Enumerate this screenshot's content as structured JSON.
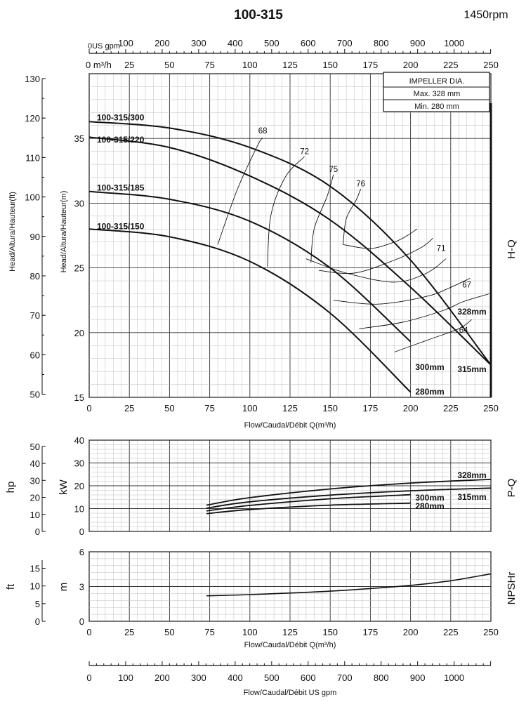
{
  "header": {
    "model": "100-315",
    "speed": "1450rpm"
  },
  "impeller_box": {
    "title": "IMPELLER DIA.",
    "max": "Max.  328  mm",
    "min": "Min.   280  mm"
  },
  "chart_data": [
    {
      "id": "hq",
      "type": "line",
      "side_label": "H-Q",
      "xlabel": "Flow/Caudal/Débit Q(m³/h)",
      "ylabel_m": "Head/Altura/Hauteur(m)",
      "ylabel_ft": "Head/Altura/Hauteur(ft)",
      "xlim": [
        0,
        250
      ],
      "ylim": [
        15,
        40
      ],
      "x_ticks": [
        0,
        25,
        50,
        75,
        100,
        125,
        150,
        175,
        200,
        225,
        250
      ],
      "y_ticks": [
        15,
        20,
        25,
        30,
        35
      ],
      "ft_ticks": [
        50,
        60,
        70,
        80,
        90,
        100,
        110,
        120,
        130
      ],
      "top_m3h_label": "0 m³/h",
      "top_m3h_ticks": [
        25,
        50,
        75,
        100,
        125,
        150,
        175,
        200,
        225,
        250
      ],
      "top_usgpm_label": "0US gpm",
      "top_usgpm_ticks": [
        100,
        200,
        300,
        400,
        500,
        600,
        700,
        800,
        900,
        1000
      ],
      "series": [
        {
          "name": "328mm",
          "x": [
            0,
            50,
            100,
            150,
            200,
            250
          ],
          "y": [
            36.3,
            35.8,
            34.3,
            31.3,
            25.6,
            17.5
          ]
        },
        {
          "name": "315mm",
          "x": [
            0,
            50,
            100,
            150,
            200,
            250
          ],
          "y": [
            35.1,
            34.3,
            32.1,
            28.7,
            23.5,
            17.5
          ]
        },
        {
          "name": "300mm",
          "x": [
            0,
            50,
            100,
            150,
            200
          ],
          "y": [
            30.9,
            30.3,
            28.6,
            25.0,
            19.3
          ]
        },
        {
          "name": "280mm",
          "x": [
            0,
            50,
            100,
            150,
            200
          ],
          "y": [
            28.0,
            27.4,
            25.5,
            21.5,
            15.4
          ]
        }
      ],
      "curve_labels": [
        "100-315/300",
        "100-315/220",
        "100-315/185",
        "100-315/150"
      ],
      "efficiency_labels": [
        {
          "text": "68",
          "x": 108,
          "y": 35.4
        },
        {
          "text": "72",
          "x": 134,
          "y": 33.8
        },
        {
          "text": "75",
          "x": 152,
          "y": 32.4
        },
        {
          "text": "76",
          "x": 169,
          "y": 31.3
        },
        {
          "text": "71",
          "x": 219,
          "y": 26.3
        },
        {
          "text": "67",
          "x": 235,
          "y": 23.5
        },
        {
          "text": "64",
          "x": 233,
          "y": 20.0
        }
      ],
      "efficiency_lines": [
        {
          "x": [
            80,
            92,
            105,
            108
          ],
          "y": [
            26.8,
            31.0,
            34.5,
            35.0
          ]
        },
        {
          "x": [
            111,
            113,
            122,
            134
          ],
          "y": [
            25.1,
            29.0,
            32.0,
            33.6
          ]
        },
        {
          "x": [
            138,
            140,
            148,
            152
          ],
          "y": [
            25.4,
            28.0,
            30.5,
            32.2
          ]
        },
        {
          "x": [
            158,
            160,
            166,
            169
          ],
          "y": [
            26.8,
            28.8,
            30.2,
            31.1
          ]
        },
        {
          "x": [
            158,
            175,
            190,
            198,
            204
          ],
          "y": [
            26.8,
            26.5,
            27.0,
            27.5,
            28.0
          ]
        },
        {
          "x": [
            143,
            165,
            190,
            207,
            214
          ],
          "y": [
            24.8,
            24.6,
            25.6,
            26.6,
            27.3
          ]
        },
        {
          "x": [
            135,
            160,
            190,
            210,
            222
          ],
          "y": [
            25.7,
            24.6,
            23.9,
            24.6,
            25.7
          ]
        },
        {
          "x": [
            152,
            180,
            210,
            225,
            237
          ],
          "y": [
            22.5,
            22.2,
            22.8,
            23.5,
            24.2
          ]
        },
        {
          "x": [
            168,
            195,
            220,
            233,
            249
          ],
          "y": [
            20.3,
            20.8,
            21.7,
            22.4,
            23.0
          ]
        },
        {
          "x": [
            190,
            210,
            230,
            238
          ],
          "y": [
            18.5,
            19.4,
            20.3,
            21.0
          ]
        }
      ],
      "mm_labels": [
        "328mm",
        "315mm",
        "300mm",
        "280mm"
      ]
    },
    {
      "id": "pq",
      "type": "line",
      "side_label": "P-Q",
      "ylabel_kw": "kW",
      "ylabel_hp": "hp",
      "xlim": [
        0,
        250
      ],
      "ylim": [
        0,
        40
      ],
      "y_ticks": [
        0,
        10,
        20,
        30,
        40
      ],
      "hp_ticks": [
        0,
        10,
        20,
        30,
        40,
        50
      ],
      "series": [
        {
          "name": "328mm",
          "x": [
            73,
            100,
            150,
            200,
            250
          ],
          "y": [
            11.5,
            14.8,
            18.6,
            21.2,
            22.8
          ]
        },
        {
          "name": "315mm",
          "x": [
            73,
            100,
            150,
            200,
            250
          ],
          "y": [
            10.2,
            13.0,
            15.9,
            17.8,
            19.0
          ]
        },
        {
          "name": "300mm",
          "x": [
            73,
            100,
            150,
            200
          ],
          "y": [
            9.0,
            11.4,
            14.3,
            16.1
          ]
        },
        {
          "name": "280mm",
          "x": [
            73,
            100,
            150,
            200
          ],
          "y": [
            7.8,
            9.6,
            11.5,
            12.4
          ]
        }
      ],
      "mm_labels": [
        "328mm",
        "315mm",
        "300mm",
        "280mm"
      ]
    },
    {
      "id": "npsh",
      "type": "line",
      "side_label": "NPSHr",
      "xlabel": "Flow/Caudal/Débit Q(m³/h)",
      "ylabel_m": "m",
      "ylabel_ft": "ft",
      "xlim": [
        0,
        250
      ],
      "ylim": [
        0,
        6
      ],
      "x_ticks": [
        0,
        25,
        50,
        75,
        100,
        125,
        150,
        175,
        200,
        225,
        250
      ],
      "y_ticks": [
        0,
        3,
        6
      ],
      "ft_ticks": [
        0,
        5,
        10,
        15
      ],
      "series": [
        {
          "name": "NPSHr",
          "x": [
            73,
            100,
            150,
            200,
            225,
            250
          ],
          "y": [
            2.2,
            2.3,
            2.6,
            3.1,
            3.5,
            4.1
          ]
        }
      ],
      "bottom_usgpm_ticks": [
        0,
        100,
        200,
        300,
        400,
        500,
        600,
        700,
        800,
        900,
        1000
      ],
      "bottom_usgpm_label": "Flow/Caudal/Débit  US gpm"
    }
  ]
}
